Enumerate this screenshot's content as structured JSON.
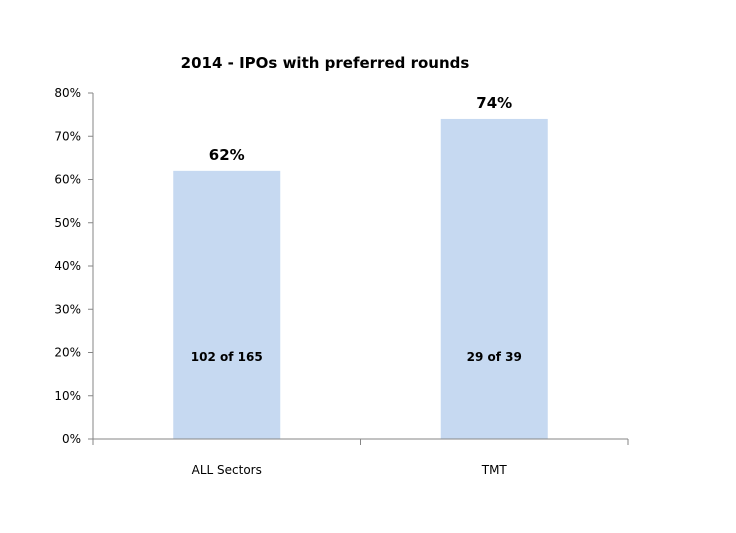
{
  "chart_data": {
    "type": "bar",
    "title": "2014 - IPOs with preferred rounds",
    "categories": [
      "ALL Sectors",
      "TMT"
    ],
    "values": [
      0.62,
      0.74
    ],
    "data_labels": [
      "62%",
      "74%"
    ],
    "inner_labels": [
      "102 of 165",
      "29 of 39"
    ],
    "yticks": [
      "0%",
      "10%",
      "20%",
      "30%",
      "40%",
      "50%",
      "60%",
      "70%",
      "80%"
    ],
    "ylim": [
      0,
      0.8
    ],
    "grid": false,
    "bar_color": "#c6d9f1"
  }
}
